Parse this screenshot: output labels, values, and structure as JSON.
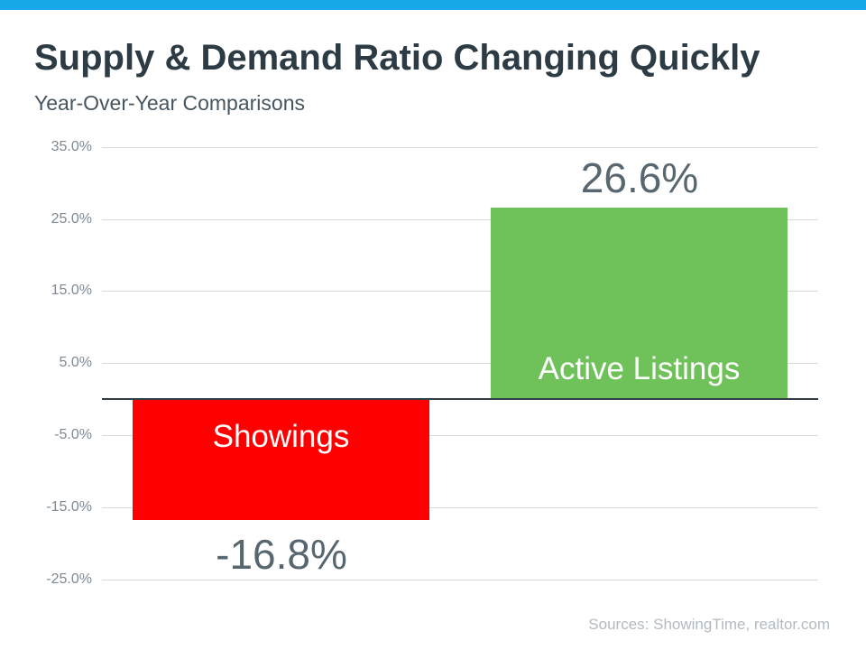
{
  "header": {
    "title": "Supply & Demand Ratio Changing Quickly",
    "subtitle": "Year-Over-Year Comparisons"
  },
  "colors": {
    "accent_bar": "#17a8e9",
    "gridline": "#d9d9d9",
    "zero_line": "#323d46",
    "tick_label": "#7d8a95",
    "value_label": "#57666f",
    "bar_text": "#ffffff"
  },
  "chart_data": {
    "type": "bar",
    "title": "Supply & Demand Ratio Changing Quickly",
    "subtitle": "Year-Over-Year Comparisons",
    "categories": [
      "Showings",
      "Active Listings"
    ],
    "values": [
      -16.8,
      26.6
    ],
    "value_labels": [
      "-16.8%",
      "26.6%"
    ],
    "bar_colors": [
      "#fe0000",
      "#6fc15a"
    ],
    "yticks": [
      35,
      25,
      15,
      5,
      -5,
      -15,
      -25
    ],
    "ytick_labels": [
      "35.0%",
      "25.0%",
      "15.0%",
      "5.0%",
      "-5.0%",
      "-15.0%",
      "-25.0%"
    ],
    "ylim": [
      -25,
      35
    ],
    "xlabel": "",
    "ylabel": "",
    "grid": true,
    "legend": "none"
  },
  "footer": {
    "source": "Sources: ShowingTime, realtor.com"
  }
}
